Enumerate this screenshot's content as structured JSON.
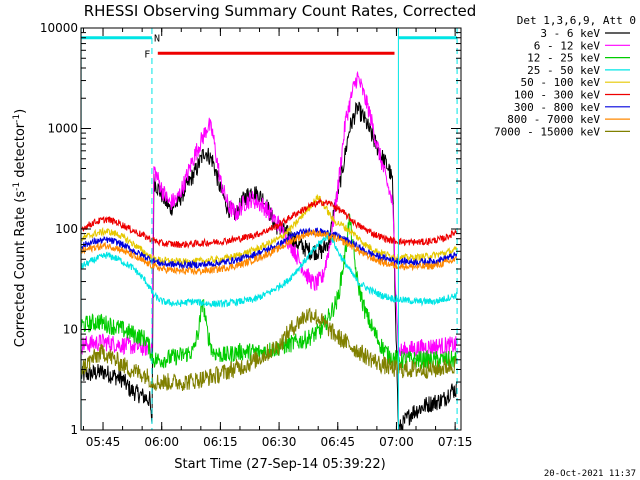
{
  "chart_data": {
    "type": "line",
    "title": "RHESSI Observing Summary Count Rates, Corrected",
    "xlabel": "Start Time (27-Sep-14 05:39:22)",
    "ylabel_main": "Corrected Count Rate (s",
    "ylabel_sup1": "-1",
    "ylabel_mid": " detector",
    "ylabel_sup2": "-1",
    "ylabel_end": ")",
    "yscale": "log",
    "ylim": [
      1,
      10000
    ],
    "xlim_minutes": [
      339.37,
      436.5
    ],
    "x_ticks": [
      {
        "label": "05:45",
        "t": 345
      },
      {
        "label": "06:00",
        "t": 360
      },
      {
        "label": "06:15",
        "t": 375
      },
      {
        "label": "06:30",
        "t": 390
      },
      {
        "label": "06:45",
        "t": 405
      },
      {
        "label": "07:00",
        "t": 420
      },
      {
        "label": "07:15",
        "t": 435
      }
    ],
    "y_ticks": [
      {
        "label": "1",
        "v": 1
      },
      {
        "label": "10",
        "v": 10
      },
      {
        "label": "100",
        "v": 100
      },
      {
        "label": "1000",
        "v": 1000
      },
      {
        "label": "10000",
        "v": 10000
      }
    ],
    "legend_header": "Det 1,3,6,9, Att 0",
    "legend_position": "outside-right",
    "series": [
      {
        "name": "3 - 6 keV",
        "color": "#000000",
        "points": [
          [
            339.4,
            3.5
          ],
          [
            345,
            3.8
          ],
          [
            350,
            3.2
          ],
          [
            352,
            2.5
          ],
          [
            357,
            2
          ],
          [
            357.5,
            1
          ],
          [
            358,
            300
          ],
          [
            360,
            220
          ],
          [
            362,
            160
          ],
          [
            364,
            180
          ],
          [
            366,
            250
          ],
          [
            369,
            400
          ],
          [
            371,
            600
          ],
          [
            373,
            480
          ],
          [
            375,
            250
          ],
          [
            377,
            160
          ],
          [
            379,
            140
          ],
          [
            381,
            200
          ],
          [
            383,
            240
          ],
          [
            386,
            200
          ],
          [
            389,
            110
          ],
          [
            392,
            90
          ],
          [
            395,
            70
          ],
          [
            398,
            60
          ],
          [
            401,
            60
          ],
          [
            403,
            80
          ],
          [
            404,
            150
          ],
          [
            406,
            350
          ],
          [
            408,
            1000
          ],
          [
            410,
            1600
          ],
          [
            412,
            1200
          ],
          [
            414,
            800
          ],
          [
            416,
            550
          ],
          [
            418,
            400
          ],
          [
            419,
            300
          ],
          [
            420.5,
            1
          ],
          [
            424,
            1.5
          ],
          [
            428,
            1.8
          ],
          [
            432,
            2
          ],
          [
            434,
            2.5
          ],
          [
            435.5,
            2.5
          ]
        ]
      },
      {
        "name": "6 - 12 keV",
        "color": "#ff00ff",
        "points": [
          [
            339.4,
            7
          ],
          [
            345,
            7.5
          ],
          [
            350,
            7
          ],
          [
            357,
            6.5
          ],
          [
            357.5,
            6
          ],
          [
            358,
            400
          ],
          [
            360,
            250
          ],
          [
            362,
            180
          ],
          [
            364,
            200
          ],
          [
            366,
            300
          ],
          [
            368,
            500
          ],
          [
            371,
            900
          ],
          [
            372,
            1100
          ],
          [
            373,
            900
          ],
          [
            375,
            300
          ],
          [
            377,
            170
          ],
          [
            379,
            140
          ],
          [
            381,
            180
          ],
          [
            383,
            200
          ],
          [
            386,
            170
          ],
          [
            390,
            110
          ],
          [
            394,
            60
          ],
          [
            397,
            35
          ],
          [
            399,
            28
          ],
          [
            401,
            32
          ],
          [
            403,
            70
          ],
          [
            405,
            250
          ],
          [
            407,
            1200
          ],
          [
            409,
            2500
          ],
          [
            410,
            3300
          ],
          [
            411,
            2600
          ],
          [
            413,
            1500
          ],
          [
            415,
            700
          ],
          [
            417,
            350
          ],
          [
            419,
            180
          ],
          [
            420.5,
            6
          ],
          [
            425,
            6.5
          ],
          [
            430,
            6.8
          ],
          [
            435.5,
            7
          ]
        ]
      },
      {
        "name": "12 - 25 keV",
        "color": "#00cc00",
        "points": [
          [
            339.4,
            11
          ],
          [
            344,
            12
          ],
          [
            350,
            10
          ],
          [
            356,
            8
          ],
          [
            358,
            5
          ],
          [
            360,
            5
          ],
          [
            365,
            5.5
          ],
          [
            368,
            6
          ],
          [
            369.5,
            10
          ],
          [
            370.5,
            20
          ],
          [
            371.5,
            10
          ],
          [
            373,
            6
          ],
          [
            376,
            5.5
          ],
          [
            380,
            6
          ],
          [
            386,
            6
          ],
          [
            392,
            7
          ],
          [
            397,
            8
          ],
          [
            401,
            10
          ],
          [
            405,
            20
          ],
          [
            407,
            60
          ],
          [
            408,
            130
          ],
          [
            409,
            60
          ],
          [
            410,
            30
          ],
          [
            412,
            15
          ],
          [
            414,
            10
          ],
          [
            416,
            7
          ],
          [
            418,
            5.5
          ],
          [
            420.5,
            5
          ],
          [
            425,
            5
          ],
          [
            430,
            5
          ],
          [
            435.5,
            5
          ]
        ]
      },
      {
        "name": "25 - 50 keV",
        "color": "#00e5e5",
        "points": [
          [
            339.4,
            42
          ],
          [
            343,
            50
          ],
          [
            346,
            55
          ],
          [
            349,
            50
          ],
          [
            353,
            40
          ],
          [
            356,
            30
          ],
          [
            358,
            22
          ],
          [
            360,
            19
          ],
          [
            364,
            18
          ],
          [
            368,
            19
          ],
          [
            372,
            18
          ],
          [
            376,
            18
          ],
          [
            380,
            19
          ],
          [
            384,
            20
          ],
          [
            388,
            24
          ],
          [
            392,
            30
          ],
          [
            396,
            45
          ],
          [
            400,
            70
          ],
          [
            403,
            90
          ],
          [
            405,
            60
          ],
          [
            407,
            45
          ],
          [
            410,
            30
          ],
          [
            413,
            25
          ],
          [
            416,
            22
          ],
          [
            420,
            20
          ],
          [
            425,
            19
          ],
          [
            430,
            19
          ],
          [
            435.5,
            22
          ]
        ]
      },
      {
        "name": "50 - 100 keV",
        "color": "#e5c800",
        "points": [
          [
            339.4,
            80
          ],
          [
            343,
            90
          ],
          [
            346,
            95
          ],
          [
            349,
            88
          ],
          [
            353,
            70
          ],
          [
            356,
            57
          ],
          [
            358,
            50
          ],
          [
            362,
            48
          ],
          [
            366,
            47
          ],
          [
            370,
            48
          ],
          [
            375,
            50
          ],
          [
            380,
            55
          ],
          [
            385,
            65
          ],
          [
            390,
            80
          ],
          [
            394,
            110
          ],
          [
            398,
            170
          ],
          [
            400,
            210
          ],
          [
            402,
            160
          ],
          [
            404,
            120
          ],
          [
            406,
            110
          ],
          [
            409,
            90
          ],
          [
            412,
            70
          ],
          [
            415,
            60
          ],
          [
            418,
            55
          ],
          [
            420,
            52
          ],
          [
            425,
            52
          ],
          [
            430,
            55
          ],
          [
            435.5,
            62
          ]
        ]
      },
      {
        "name": "100 - 300 keV",
        "color": "#ee0000",
        "points": [
          [
            339.4,
            100
          ],
          [
            343,
            118
          ],
          [
            346,
            125
          ],
          [
            349,
            115
          ],
          [
            353,
            95
          ],
          [
            357,
            80
          ],
          [
            360,
            72
          ],
          [
            365,
            70
          ],
          [
            370,
            72
          ],
          [
            375,
            75
          ],
          [
            380,
            80
          ],
          [
            385,
            90
          ],
          [
            390,
            110
          ],
          [
            394,
            140
          ],
          [
            398,
            170
          ],
          [
            401,
            185
          ],
          [
            403,
            180
          ],
          [
            406,
            150
          ],
          [
            410,
            110
          ],
          [
            414,
            90
          ],
          [
            418,
            78
          ],
          [
            422,
            74
          ],
          [
            427,
            74
          ],
          [
            432,
            80
          ],
          [
            435.5,
            95
          ]
        ]
      },
      {
        "name": "300 - 800 keV",
        "color": "#0000dd",
        "points": [
          [
            339.4,
            68
          ],
          [
            343,
            75
          ],
          [
            346,
            78
          ],
          [
            349,
            73
          ],
          [
            353,
            60
          ],
          [
            357,
            50
          ],
          [
            360,
            45
          ],
          [
            365,
            44
          ],
          [
            370,
            44
          ],
          [
            375,
            46
          ],
          [
            380,
            50
          ],
          [
            385,
            58
          ],
          [
            390,
            70
          ],
          [
            394,
            88
          ],
          [
            398,
            97
          ],
          [
            400,
            95
          ],
          [
            404,
            88
          ],
          [
            408,
            75
          ],
          [
            412,
            60
          ],
          [
            416,
            52
          ],
          [
            420,
            48
          ],
          [
            425,
            47
          ],
          [
            430,
            48
          ],
          [
            435.5,
            55
          ]
        ]
      },
      {
        "name": "800 - 7000 keV",
        "color": "#ff8800",
        "points": [
          [
            339.4,
            60
          ],
          [
            343,
            66
          ],
          [
            346,
            68
          ],
          [
            349,
            64
          ],
          [
            353,
            53
          ],
          [
            357,
            44
          ],
          [
            360,
            40
          ],
          [
            365,
            38
          ],
          [
            370,
            38
          ],
          [
            375,
            40
          ],
          [
            380,
            44
          ],
          [
            385,
            52
          ],
          [
            390,
            64
          ],
          [
            394,
            80
          ],
          [
            398,
            92
          ],
          [
            400,
            90
          ],
          [
            404,
            82
          ],
          [
            408,
            70
          ],
          [
            412,
            55
          ],
          [
            416,
            47
          ],
          [
            420,
            43
          ],
          [
            425,
            42
          ],
          [
            430,
            43
          ],
          [
            435.5,
            50
          ]
        ]
      },
      {
        "name": "7000 - 15000 keV",
        "color": "#808000",
        "points": [
          [
            339.4,
            4
          ],
          [
            342,
            5
          ],
          [
            345,
            6
          ],
          [
            348,
            5
          ],
          [
            352,
            4
          ],
          [
            356,
            3.5
          ],
          [
            358,
            3
          ],
          [
            362,
            3
          ],
          [
            366,
            3
          ],
          [
            370,
            3.2
          ],
          [
            374,
            3.5
          ],
          [
            378,
            4
          ],
          [
            382,
            4.5
          ],
          [
            386,
            5.5
          ],
          [
            390,
            7
          ],
          [
            393,
            10
          ],
          [
            396,
            13
          ],
          [
            398,
            14.5
          ],
          [
            400,
            13
          ],
          [
            402,
            11
          ],
          [
            404,
            9
          ],
          [
            408,
            7
          ],
          [
            412,
            5.5
          ],
          [
            416,
            4.5
          ],
          [
            420,
            4
          ],
          [
            425,
            4
          ],
          [
            430,
            4
          ],
          [
            435.5,
            4.5
          ]
        ]
      }
    ],
    "flag_bars": [
      {
        "name": "night-bar",
        "color": "#00e5e5",
        "y": 8000,
        "segments": [
          [
            339.4,
            357.5
          ],
          [
            420.5,
            435.5
          ]
        ]
      },
      {
        "name": "flare-bar",
        "color": "#ee0000",
        "y": 5600,
        "segments": [
          [
            359,
            419.5
          ]
        ]
      }
    ],
    "flag_markers": [
      {
        "label": "F",
        "color": "#ee0000",
        "t": 356.3,
        "v": 5600
      },
      {
        "label": "N",
        "color": "#00e5e5",
        "t": 358.8,
        "v": 8000
      }
    ],
    "vlines_solid": [
      339.4,
      420.5
    ],
    "vlines_dashed": [
      357.5,
      435.5
    ],
    "vline_color": "#00e5e5",
    "timestamp": "20-Oct-2021 11:37"
  }
}
